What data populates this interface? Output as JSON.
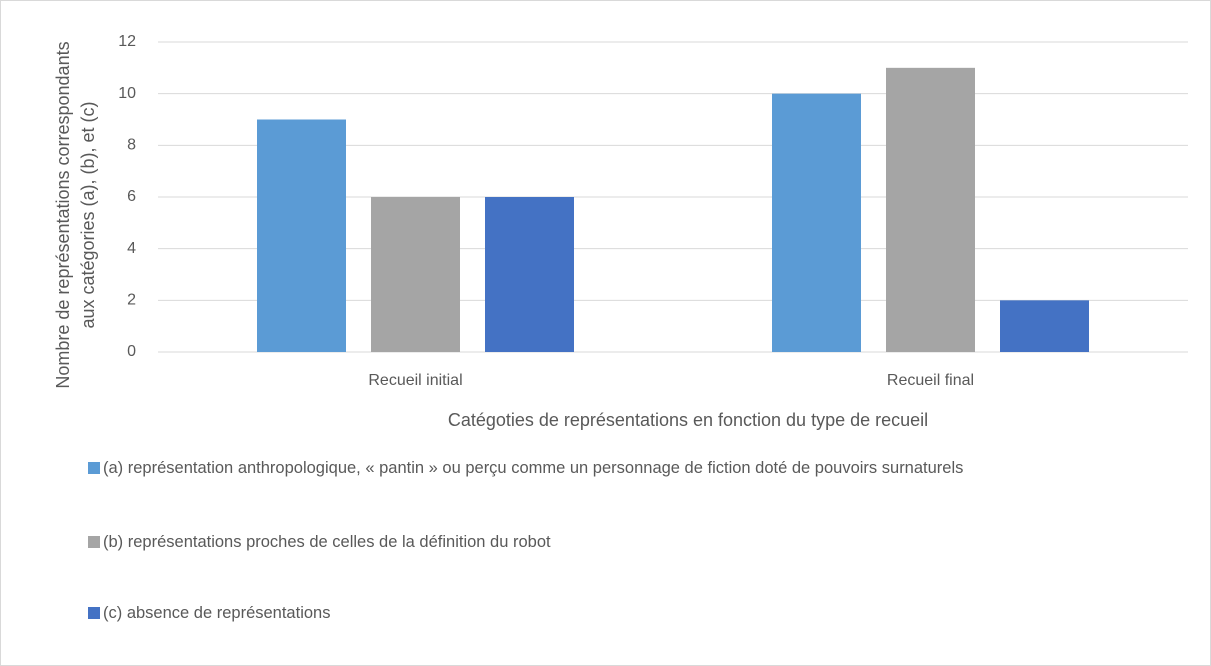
{
  "chart_data": {
    "type": "bar",
    "x_label": "Catégoties de représentations en fonction du type de recueil",
    "y_label": "Nombre de représentations correspondants aux catégories (a), (b), et (c)",
    "categories": [
      "Recueil initial",
      "Recueil final"
    ],
    "series": [
      {
        "name": "(a) représentation anthropologique, « pantin » ou perçu comme un personnage de fiction doté de pouvoirs surnaturels",
        "color": "#5b9bd5",
        "values": [
          9,
          10
        ]
      },
      {
        "name": "(b) représentations proches de celles de la définition du robot",
        "color": "#a5a5a5",
        "values": [
          6,
          11
        ]
      },
      {
        "name": "(c) absence de représentations",
        "color": "#4472c4",
        "values": [
          6,
          2
        ]
      }
    ],
    "ylim": [
      0,
      12
    ],
    "yticks": [
      0,
      2,
      4,
      6,
      8,
      10,
      12
    ],
    "grid": true,
    "legend": "bottom"
  }
}
